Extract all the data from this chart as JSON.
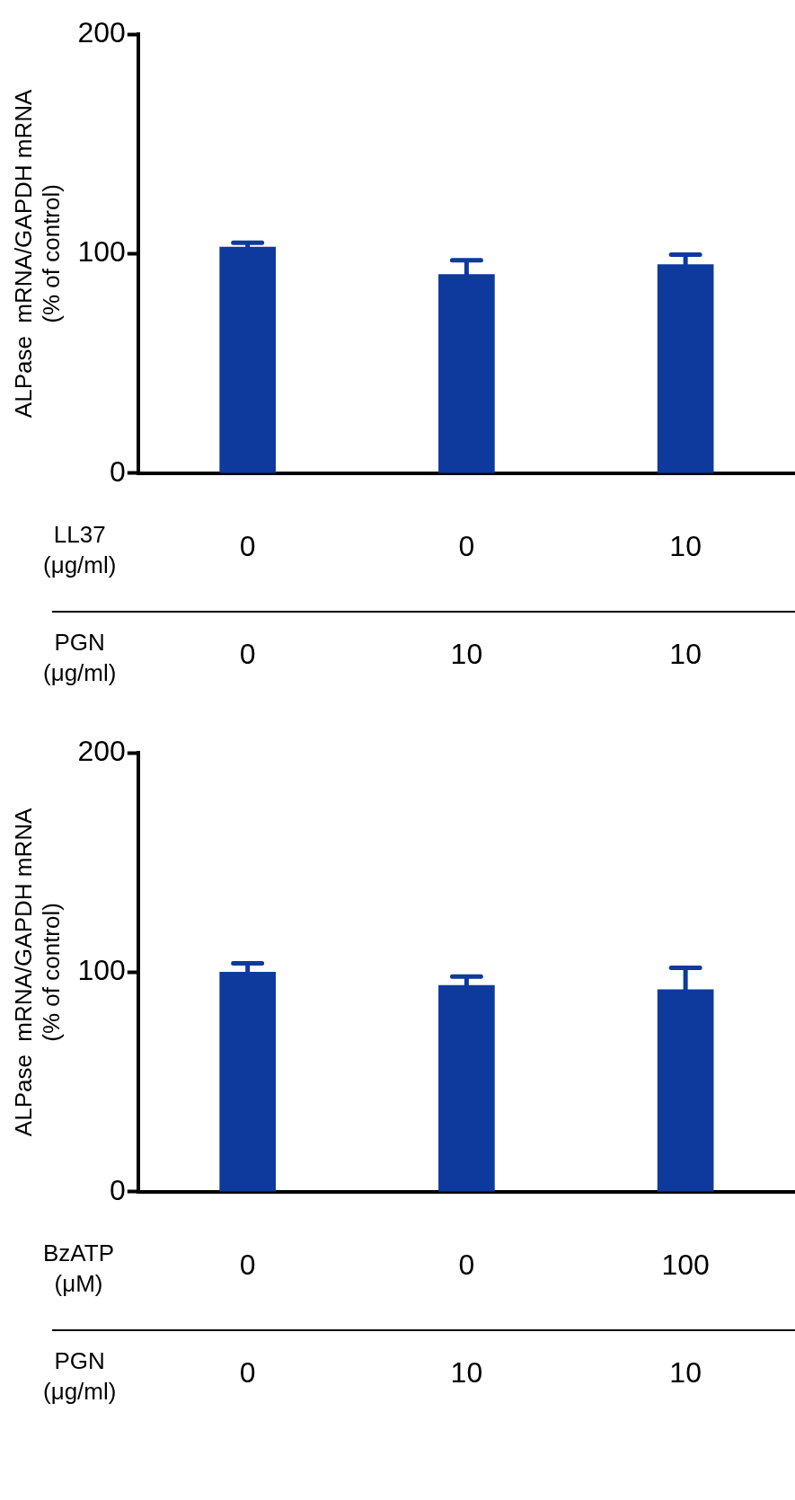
{
  "chart_data": [
    {
      "type": "bar",
      "ylabel": "ALPase  mRNA/GAPDH mRNA\n(% of control)",
      "categories": [
        null,
        null,
        null
      ],
      "color": "#0d3a9c",
      "values": [
        103,
        90.5,
        95
      ],
      "errors": [
        [
          103,
          105
        ],
        [
          90.5,
          97
        ],
        [
          95,
          99.5
        ]
      ],
      "ylim": [
        0,
        200
      ],
      "yticks": [
        0,
        100,
        200
      ],
      "grid": false,
      "legend": false,
      "annotations": [
        "LL37\n(μg/ml)",
        "0",
        "0",
        "10",
        "PGN\n(μg/ml)",
        "0",
        "10",
        "10"
      ]
    },
    {
      "type": "bar",
      "ylabel": "ALPase  mRNA/GAPDH mRNA\n(% of control)",
      "categories": [
        null,
        null,
        null
      ],
      "color": "#0d3a9c",
      "values": [
        100,
        94,
        92
      ],
      "errors": [
        [
          100,
          104
        ],
        [
          94,
          98
        ],
        [
          92,
          102
        ]
      ],
      "ylim": [
        0,
        200
      ],
      "yticks": [
        0,
        100,
        200
      ],
      "grid": false,
      "legend": false,
      "annotations": [
        "BzATP\n(μM)",
        "0",
        "0",
        "100",
        "PGN\n(μg/ml)",
        "0",
        "10",
        "10"
      ]
    }
  ]
}
